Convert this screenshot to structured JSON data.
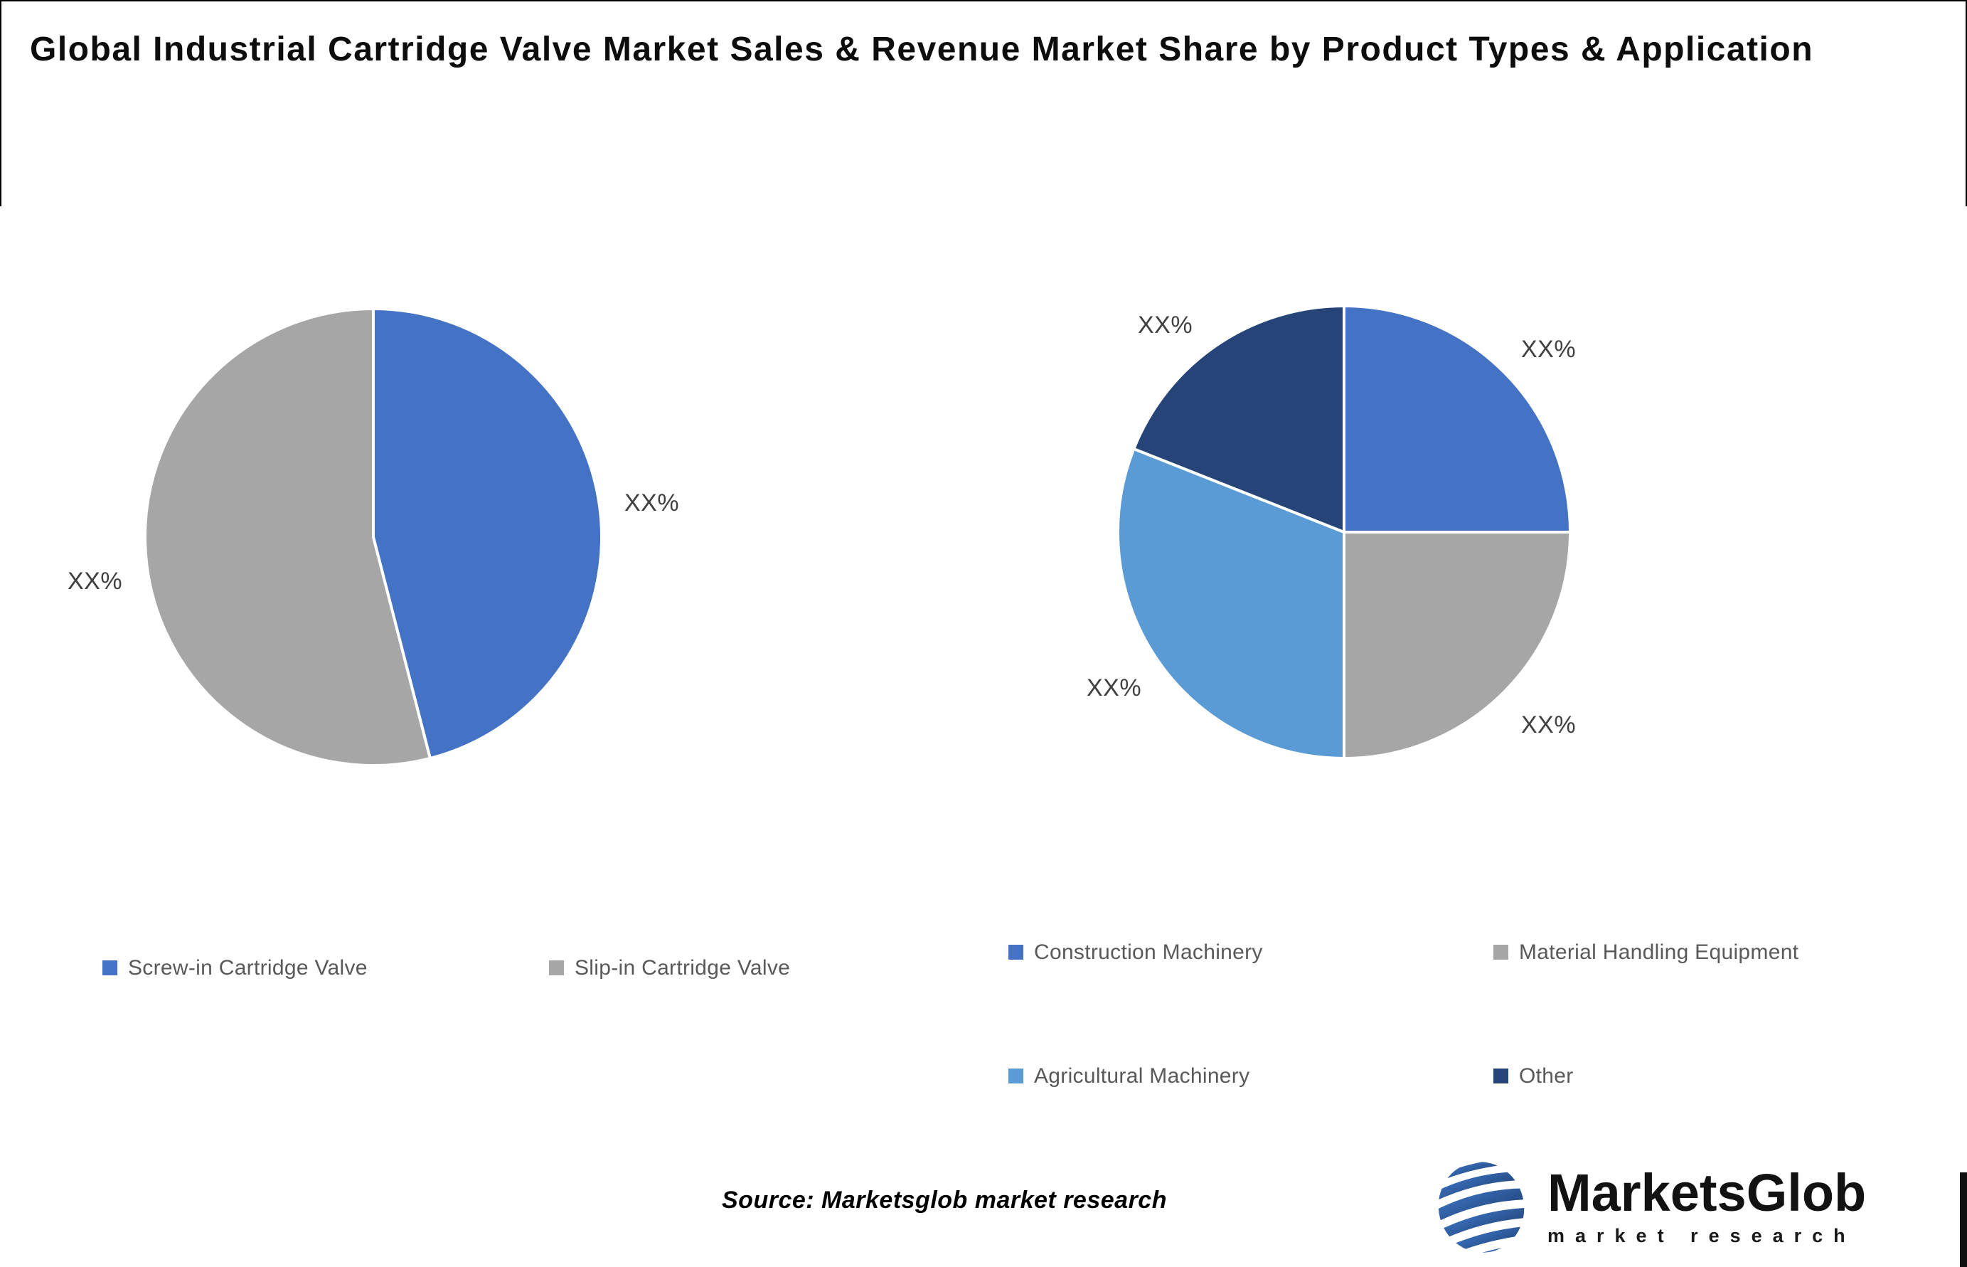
{
  "title": "Global Industrial Cartridge Valve Market Sales & Revenue Market Share by Product Types & Application",
  "source_note": "Source: Marketsglob market research",
  "logo": {
    "name": "MarketsGlob",
    "tagline": "market research",
    "globe_color": "#2e5ea6"
  },
  "colors": {
    "blue": "#4472C4",
    "gray": "#A6A6A6",
    "light_blue": "#5B9BD5",
    "navy": "#264478",
    "pct_label_text": "#404040",
    "legend_text": "#595959",
    "slice_border": "#FFFFFF"
  },
  "chart_data": [
    {
      "type": "pie",
      "name": "sales-revenue-share-by-product-type",
      "start_angle_deg": 0,
      "direction": "clockwise",
      "grid": false,
      "legend_position": "bottom",
      "segments": [
        {
          "label": "Screw-in Cartridge Valve",
          "value_pct": 46,
          "display_label": "XX%",
          "color": "#4472C4"
        },
        {
          "label": "Slip-in Cartridge Valve",
          "value_pct": 54,
          "display_label": "XX%",
          "color": "#A6A6A6"
        }
      ]
    },
    {
      "type": "pie",
      "name": "sales-revenue-share-by-application",
      "start_angle_deg": 0,
      "direction": "clockwise",
      "grid": false,
      "legend_position": "bottom",
      "segments": [
        {
          "label": "Construction Machinery",
          "value_pct": 25,
          "display_label": "XX%",
          "color": "#4472C4"
        },
        {
          "label": "Material Handling Equipment",
          "value_pct": 25,
          "display_label": "XX%",
          "color": "#A6A6A6"
        },
        {
          "label": "Agricultural Machinery",
          "value_pct": 31,
          "display_label": "XX%",
          "color": "#5B9BD5"
        },
        {
          "label": "Other",
          "value_pct": 19,
          "display_label": "XX%",
          "color": "#264478"
        }
      ]
    }
  ]
}
